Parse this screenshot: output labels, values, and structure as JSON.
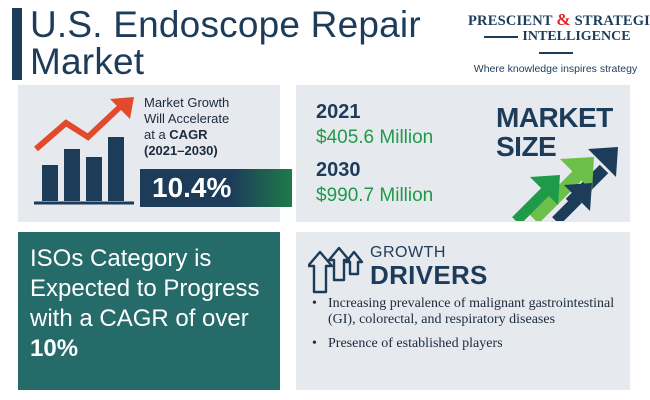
{
  "title": {
    "line1": "U.S. Endoscope Repair",
    "line2": "Market"
  },
  "logo": {
    "word1": "PRESCIENT",
    "amp": "&",
    "word2": "STRATEGIC",
    "word3": "INTELLIGENCE",
    "tagline": "Where knowledge inspires strategy"
  },
  "growth": {
    "line1": "Market Growth",
    "line2": "Will Accelerate",
    "line3_prefix": "at a ",
    "line3_bold": "CAGR",
    "line4": "(2021–2030)",
    "cagr": "10.4%"
  },
  "market_size": {
    "heading_line1": "MARKET",
    "heading_line2": "SIZE",
    "year1": "2021",
    "value1": "$405.6 Million",
    "year2": "2030",
    "value2": "$990.7 Million"
  },
  "iso": {
    "text": "ISOs Category is Expected to Progress with a CAGR of over ",
    "bold": "10%"
  },
  "drivers": {
    "heading1": "GROWTH",
    "heading2": "DRIVERS",
    "bullet": "•",
    "items": [
      "Increasing prevalence of malignant gastrointestinal (GI), colorectal, and respiratory diseases",
      "Presence of established players"
    ]
  },
  "colors": {
    "navy": "#1d3c5a",
    "green": "#1f9a48",
    "teal": "#246b6a",
    "red": "#e0282e",
    "panel": "#e6e9ee"
  },
  "icons": [
    "bar-chart-growth-icon",
    "growth-arrows-icon",
    "growth-drivers-icon"
  ]
}
